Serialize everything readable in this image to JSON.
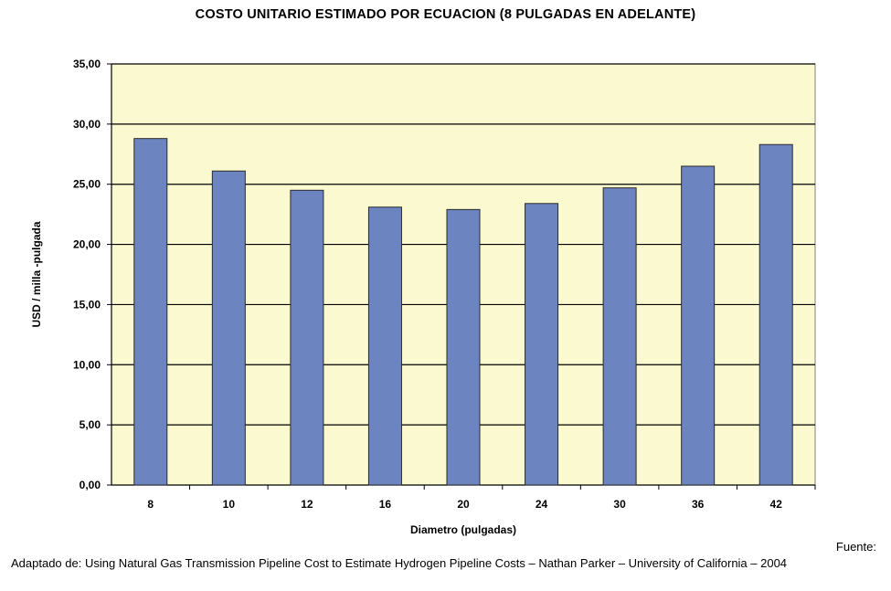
{
  "chart_data": {
    "type": "bar",
    "title": "COSTO UNITARIO ESTIMADO POR ECUACION (8 PULGADAS EN ADELANTE)",
    "xlabel": "Diametro (pulgadas)",
    "ylabel": "USD / milla -pulgada",
    "categories": [
      "8",
      "10",
      "12",
      "16",
      "20",
      "24",
      "30",
      "36",
      "42"
    ],
    "values": [
      28.8,
      26.1,
      24.5,
      23.1,
      22.9,
      23.4,
      24.7,
      26.5,
      28.3
    ],
    "ylim": [
      0,
      35
    ],
    "yticks": [
      "0,00",
      "5,00",
      "10,00",
      "15,00",
      "20,00",
      "25,00",
      "30,00",
      "35,00"
    ],
    "grid": true,
    "legend": "none",
    "colors": {
      "bar": "#6c85c0",
      "plot_bg": "#fbf9cf",
      "grid": "#000000"
    }
  },
  "footer": {
    "source_label": "Fuente:",
    "source_text": "Adaptado de:  Using Natural Gas Transmission Pipeline Cost to Estimate Hydrogen Pipeline Costs – Nathan Parker – University of California – 2004"
  }
}
